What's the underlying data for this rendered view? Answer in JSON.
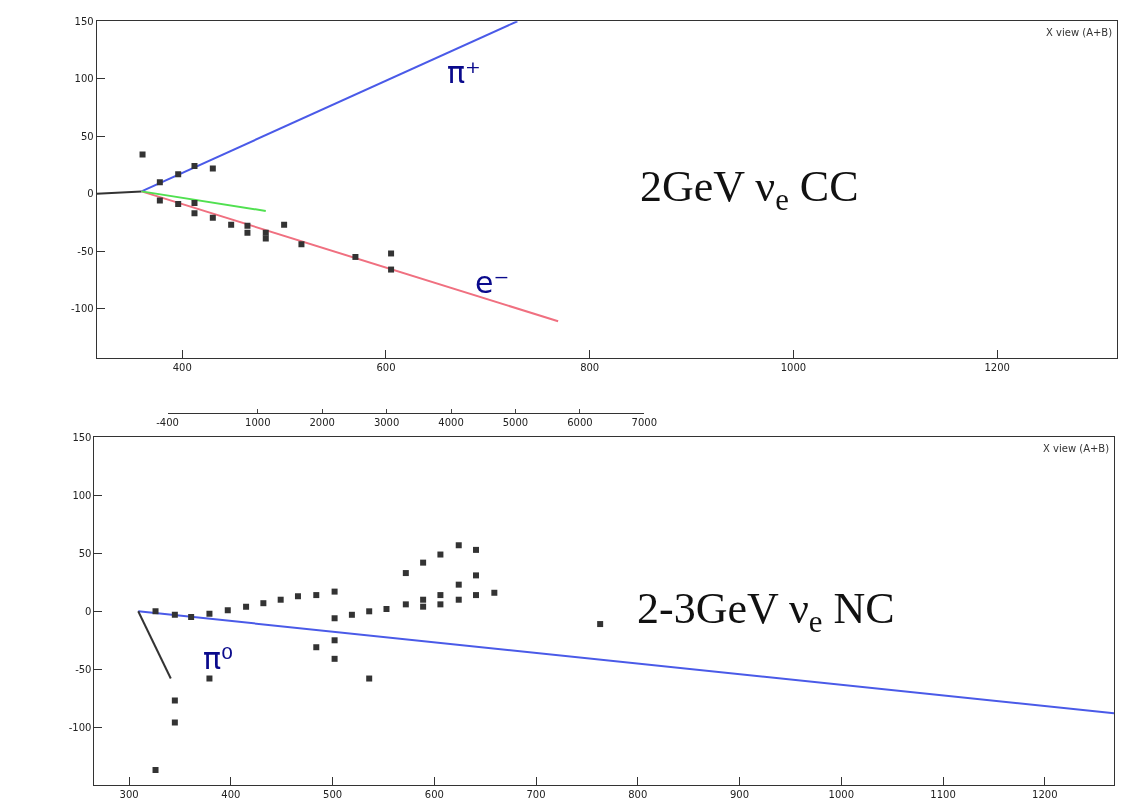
{
  "chart_data": [
    {
      "type": "scatter",
      "title": "2GeV ν$_{e}$ CC",
      "annotations": [
        "X view (A+B)"
      ],
      "xlim": [
        316,
        1318
      ],
      "xticks": [
        400,
        600,
        800,
        1000,
        1200
      ],
      "ylim": [
        -143,
        150
      ],
      "yticks": [
        -100,
        -50,
        0,
        50,
        100,
        150
      ],
      "x2lim": [
        -400,
        7000
      ],
      "x2ticks": [
        -400,
        1000,
        2000,
        3000,
        4000,
        5000,
        6000,
        7000
      ],
      "grid": false,
      "legend": false,
      "series": [
        {
          "type": "line",
          "color": "#333333",
          "x": [
            316,
            360
          ],
          "values": [
            0,
            2
          ]
        },
        {
          "type": "line",
          "name": "π⁺",
          "color": "#4a5ae8",
          "x": [
            360,
            729
          ],
          "values": [
            2,
            150
          ]
        },
        {
          "type": "line",
          "name": "e⁻",
          "color": "#f07080",
          "x": [
            360,
            769
          ],
          "values": [
            2,
            -111
          ]
        },
        {
          "type": "line",
          "color": "#50e050",
          "x": [
            360,
            482
          ],
          "values": [
            2,
            -15
          ]
        },
        {
          "color": "#333333",
          "marker": "square",
          "x": [
            361,
            378,
            396,
            412,
            430,
            378,
            396,
            412,
            412,
            430,
            448,
            464,
            464,
            482,
            482,
            500,
            517,
            570,
            605,
            605
          ],
          "values": [
            34,
            10,
            17,
            24,
            22,
            -6,
            -9,
            -8,
            -17,
            -21,
            -27,
            -28,
            -34,
            -34,
            -39,
            -27,
            -44,
            -55,
            -52,
            -66
          ]
        }
      ]
    },
    {
      "type": "scatter",
      "title": "2-3GeV ν$_{e}$ NC",
      "annotations": [
        "X view (A+B)"
      ],
      "xlim": [
        266,
        1268
      ],
      "xticks": [
        300,
        400,
        500,
        600,
        700,
        800,
        900,
        1000,
        1100,
        1200
      ],
      "ylim": [
        -150,
        150
      ],
      "yticks": [
        -100,
        -50,
        0,
        50,
        100,
        150
      ],
      "grid": false,
      "legend": false,
      "series": [
        {
          "type": "line",
          "color": "#4a5ae8",
          "x": [
            309,
            1268
          ],
          "values": [
            0,
            -88
          ]
        },
        {
          "type": "line",
          "name": "π⁰",
          "color": "#333333",
          "x": [
            309,
            341
          ],
          "values": [
            0,
            -58
          ]
        },
        {
          "color": "#333333",
          "marker": "square",
          "x": [
            326,
            345,
            361,
            379,
            397,
            415,
            432,
            449,
            466,
            484,
            502,
            502,
            519,
            536,
            553,
            572,
            572,
            589,
            589,
            589,
            606,
            606,
            606,
            624,
            624,
            624,
            641,
            641,
            641,
            659,
            502,
            502,
            484,
            379,
            536,
            345,
            345,
            326,
            763
          ],
          "values": [
            0,
            -3,
            -5,
            -2,
            1,
            4,
            7,
            10,
            13,
            14,
            17,
            -6,
            -3,
            0,
            2,
            6,
            33,
            42,
            4,
            10,
            49,
            6,
            14,
            57,
            23,
            10,
            53,
            31,
            14,
            16,
            -25,
            -41,
            -31,
            -58,
            -58,
            -77,
            -96,
            -137,
            -11
          ]
        }
      ]
    }
  ]
}
